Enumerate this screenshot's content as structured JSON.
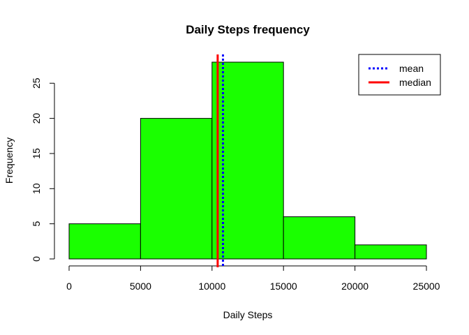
{
  "chart_data": {
    "type": "bar",
    "title": "Daily Steps frequency",
    "xlabel": "Daily Steps",
    "ylabel": "Frequency",
    "bins": [
      {
        "from": 0,
        "to": 5000,
        "count": 5
      },
      {
        "from": 5000,
        "to": 10000,
        "count": 20
      },
      {
        "from": 10000,
        "to": 15000,
        "count": 28
      },
      {
        "from": 15000,
        "to": 20000,
        "count": 6
      },
      {
        "from": 20000,
        "to": 25000,
        "count": 2
      }
    ],
    "xlim": [
      0,
      25000
    ],
    "ylim": [
      0,
      28
    ],
    "x_ticks": [
      "0",
      "5000",
      "10000",
      "15000",
      "20000",
      "25000"
    ],
    "y_ticks": [
      "0",
      "5",
      "10",
      "15",
      "20",
      "25"
    ],
    "bar_color": "#1aff00",
    "mean": {
      "label": "mean",
      "value": 10766,
      "color": "#0000ff",
      "style": "dotted"
    },
    "median": {
      "label": "median",
      "value": 10395,
      "color": "#ff0000",
      "style": "solid"
    },
    "legend": {
      "placement": "top-right",
      "entries": [
        "mean",
        "median"
      ]
    },
    "grid": false
  }
}
